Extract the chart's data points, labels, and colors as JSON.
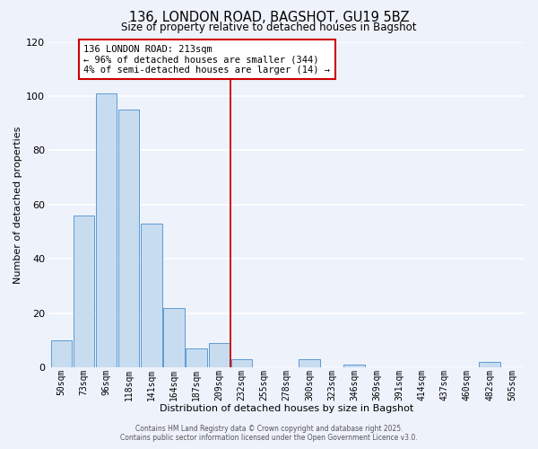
{
  "title": "136, LONDON ROAD, BAGSHOT, GU19 5BZ",
  "subtitle": "Size of property relative to detached houses in Bagshot",
  "xlabel": "Distribution of detached houses by size in Bagshot",
  "ylabel": "Number of detached properties",
  "bar_labels": [
    "50sqm",
    "73sqm",
    "96sqm",
    "118sqm",
    "141sqm",
    "164sqm",
    "187sqm",
    "209sqm",
    "232sqm",
    "255sqm",
    "278sqm",
    "300sqm",
    "323sqm",
    "346sqm",
    "369sqm",
    "391sqm",
    "414sqm",
    "437sqm",
    "460sqm",
    "482sqm",
    "505sqm"
  ],
  "bar_values": [
    10,
    56,
    101,
    95,
    53,
    22,
    7,
    9,
    3,
    0,
    0,
    3,
    0,
    1,
    0,
    0,
    0,
    0,
    0,
    2,
    0
  ],
  "bar_color": "#c8dcf0",
  "bar_edge_color": "#5b9bd5",
  "vline_index": 7.5,
  "vline_color": "#cc0000",
  "ylim": [
    0,
    120
  ],
  "yticks": [
    0,
    20,
    40,
    60,
    80,
    100,
    120
  ],
  "annotation_title": "136 LONDON ROAD: 213sqm",
  "annotation_line1": "← 96% of detached houses are smaller (344)",
  "annotation_line2": "4% of semi-detached houses are larger (14) →",
  "annotation_box_color": "#cc0000",
  "footer_line1": "Contains HM Land Registry data © Crown copyright and database right 2025.",
  "footer_line2": "Contains public sector information licensed under the Open Government Licence v3.0.",
  "background_color": "#eef2fb",
  "grid_color": "#ffffff"
}
